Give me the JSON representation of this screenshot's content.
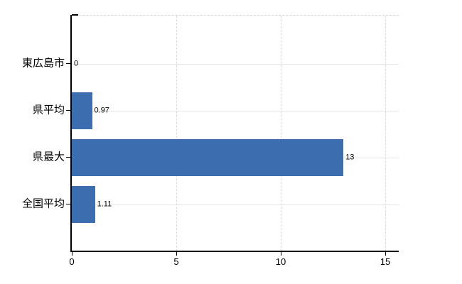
{
  "chart_data": {
    "type": "bar",
    "orientation": "horizontal",
    "title": "",
    "categories": [
      "東広島市",
      "県平均",
      "県最大",
      "全国平均"
    ],
    "values": [
      0,
      0.97,
      13,
      1.11
    ],
    "value_labels": [
      "0",
      "0.97",
      "13",
      "1.11"
    ],
    "x_ticks": [
      "0",
      "5",
      "10",
      "15"
    ],
    "xlim": [
      0,
      15
    ],
    "grid": true,
    "legend": false,
    "bar_color": "#3c6eaf",
    "axis_color": "#000000",
    "h_gridline_color": "#e3e7e3",
    "v_gridline_color": "#d9d9de"
  }
}
